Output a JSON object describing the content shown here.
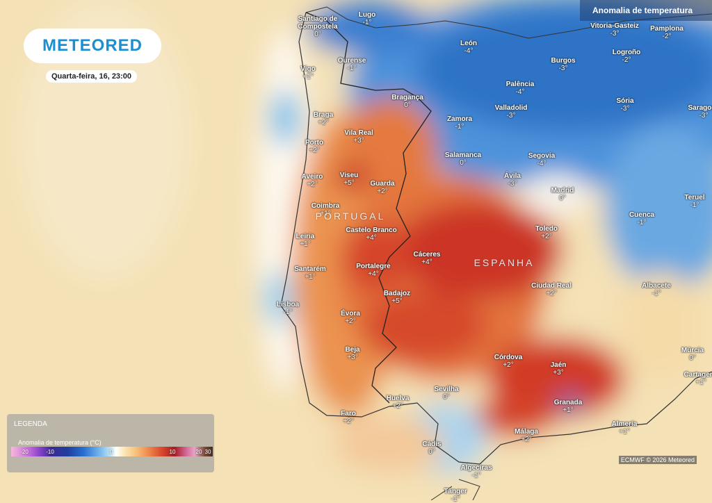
{
  "header": {
    "logo": "METEORED",
    "datetime": "Quarta-feira, 16, 23:00",
    "layer": "Anomalia de temperatura"
  },
  "map": {
    "countries": [
      "PORTUGAL",
      "ESPANHA"
    ],
    "cities": [
      {
        "name": "Lugo",
        "anomaly": "-1°"
      },
      {
        "name": "Santiago de Compostela",
        "anomaly": "0°"
      },
      {
        "name": "Ourense",
        "anomaly": "-1°"
      },
      {
        "name": "Vigo",
        "anomaly": "+1°"
      },
      {
        "name": "León",
        "anomaly": "-4°"
      },
      {
        "name": "Vitoria-Gasteiz",
        "anomaly": "-3°"
      },
      {
        "name": "Pamplona",
        "anomaly": "-2°"
      },
      {
        "name": "Logroño",
        "anomaly": "-2°"
      },
      {
        "name": "Burgos",
        "anomaly": "-3°"
      },
      {
        "name": "Bragança",
        "anomaly": "0°"
      },
      {
        "name": "Palência",
        "anomaly": "-4°"
      },
      {
        "name": "Valladolid",
        "anomaly": "-3°"
      },
      {
        "name": "Sória",
        "anomaly": "-3°"
      },
      {
        "name": "Saragoça",
        "anomaly": "-3°"
      },
      {
        "name": "Zamora",
        "anomaly": "-1°"
      },
      {
        "name": "Braga",
        "anomaly": "+2°"
      },
      {
        "name": "Vila Real",
        "anomaly": "+3°"
      },
      {
        "name": "Porto",
        "anomaly": "+2°"
      },
      {
        "name": "Salamanca",
        "anomaly": "0°"
      },
      {
        "name": "Segovia",
        "anomaly": "-4°"
      },
      {
        "name": "Aveiro",
        "anomaly": "+2°"
      },
      {
        "name": "Viseu",
        "anomaly": "+5°"
      },
      {
        "name": "Guarda",
        "anomaly": "+2°"
      },
      {
        "name": "Ávila",
        "anomaly": "-3°"
      },
      {
        "name": "Madrid",
        "anomaly": "0°"
      },
      {
        "name": "Teruel",
        "anomaly": "-1°"
      },
      {
        "name": "Coimbra",
        "anomaly": "+1°"
      },
      {
        "name": "Cuenca",
        "anomaly": "-1°"
      },
      {
        "name": "Toledo",
        "anomaly": "+2°"
      },
      {
        "name": "Castelo Branco",
        "anomaly": "+4°"
      },
      {
        "name": "Leiria",
        "anomaly": "+1°"
      },
      {
        "name": "Cáceres",
        "anomaly": "+4°"
      },
      {
        "name": "Santarém",
        "anomaly": "+1°"
      },
      {
        "name": "Portalegre",
        "anomaly": "+4°"
      },
      {
        "name": "Ciudad Real",
        "anomaly": "+2°"
      },
      {
        "name": "Albacete",
        "anomaly": "-1°"
      },
      {
        "name": "Lisboa",
        "anomaly": "-1°"
      },
      {
        "name": "Badajoz",
        "anomaly": "+5°"
      },
      {
        "name": "Évora",
        "anomaly": "+2°"
      },
      {
        "name": "Beja",
        "anomaly": "+3°"
      },
      {
        "name": "Córdova",
        "anomaly": "+2°"
      },
      {
        "name": "Jaén",
        "anomaly": "+3°"
      },
      {
        "name": "Múrcia",
        "anomaly": "0°"
      },
      {
        "name": "Cartagena",
        "anomaly": "+1°"
      },
      {
        "name": "Sevilha",
        "anomaly": "0°"
      },
      {
        "name": "Huelva",
        "anomaly": "+2°"
      },
      {
        "name": "Granada",
        "anomaly": "+1°"
      },
      {
        "name": "Faro",
        "anomaly": "+2°"
      },
      {
        "name": "Almería",
        "anomaly": "+1°"
      },
      {
        "name": "Málaga",
        "anomaly": "+2°"
      },
      {
        "name": "Cádis",
        "anomaly": "0°"
      },
      {
        "name": "Algeciras",
        "anomaly": "-1°"
      },
      {
        "name": "Tânger",
        "anomaly": "-1°"
      }
    ]
  },
  "legend": {
    "title": "LEGENDA",
    "scale_title": "Anomalia de temperatura (°C)",
    "ticks": [
      -20,
      -10,
      0,
      10,
      20,
      30
    ]
  },
  "credit": "ECMWF © 2026 Meteored"
}
